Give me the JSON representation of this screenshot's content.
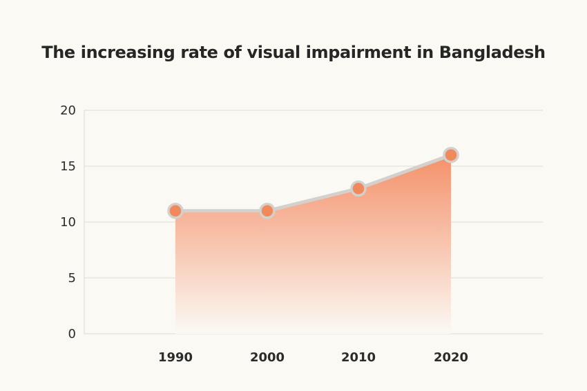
{
  "chart_data": {
    "type": "area",
    "title": "The increasing rate of visual impairment in Bangladesh",
    "xlabel": "",
    "ylabel": "",
    "categories": [
      "1990",
      "2000",
      "2010",
      "2020"
    ],
    "values": [
      11,
      11,
      13,
      16
    ],
    "ylim": [
      0,
      20
    ],
    "yticks": [
      0,
      5,
      10,
      15,
      20
    ],
    "grid": true,
    "legend": "none",
    "colors": {
      "fill_top": "#f4916a",
      "fill_bottom": "#fbf9f4",
      "line": "#d4d0cb",
      "marker": "#f08a5d",
      "grid": "#dedbd6"
    }
  }
}
